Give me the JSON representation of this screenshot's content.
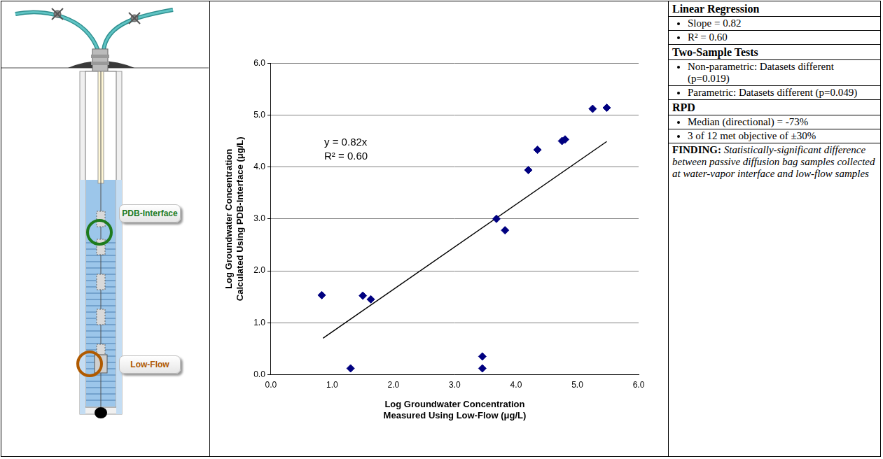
{
  "chart_data": {
    "type": "scatter",
    "x_label": "Log Groundwater Concentration Measured Using Low-Flow (μg/L)",
    "y_label": [
      "Log Groundwater Concentration",
      "Calculated Using PDB-Interface (μg/L)"
    ],
    "x": [
      0.83,
      1.3,
      1.5,
      1.63,
      3.45,
      3.45,
      3.68,
      3.82,
      4.2,
      4.35,
      4.75,
      4.8,
      5.25,
      5.48
    ],
    "values": [
      1.53,
      0.12,
      1.52,
      1.45,
      0.35,
      0.12,
      3.0,
      2.78,
      3.94,
      4.33,
      4.5,
      4.53,
      5.12,
      5.14
    ],
    "color": "#000080",
    "marker": "diamond",
    "trend_line": {
      "x": [
        0.85,
        5.48
      ],
      "y": [
        0.7,
        4.49
      ],
      "color": "#000000"
    },
    "annotations": [
      "y = 0.82x",
      "R² = 0.60"
    ],
    "xlim": [
      0,
      6
    ],
    "ylim": [
      0,
      6
    ],
    "xticks": [
      {
        "value": 0,
        "label": "0.0"
      },
      {
        "value": 1,
        "label": "1.0"
      },
      {
        "value": 2,
        "label": "2.0"
      },
      {
        "value": 3,
        "label": "3.0"
      },
      {
        "value": 4,
        "label": "4.0"
      },
      {
        "value": 5,
        "label": "5.0"
      },
      {
        "value": 6,
        "label": "6.0"
      }
    ],
    "yticks": [
      {
        "value": 0,
        "label": "0.0"
      },
      {
        "value": 1,
        "label": "1.0"
      },
      {
        "value": 2,
        "label": "2.0"
      },
      {
        "value": 3,
        "label": "3.0"
      },
      {
        "value": 4,
        "label": "4.0"
      },
      {
        "value": 5,
        "label": "5.0"
      },
      {
        "value": 6,
        "label": "6.0"
      }
    ],
    "grid": true
  },
  "diagram": {
    "labels": [
      {
        "text": "PDB-Interface",
        "color": "#1e7b1e"
      },
      {
        "text": "Low-Flow",
        "color": "#b05a00"
      }
    ]
  },
  "table": {
    "sections": [
      {
        "head": "Linear Regression",
        "items": [
          "Slope = 0.82",
          "R² = 0.60"
        ]
      },
      {
        "head": "Two-Sample Tests",
        "items": [
          "Non-parametric: Datasets different (p=0.019)",
          "Parametric: Datasets different (p=0.049)"
        ]
      },
      {
        "head": "RPD",
        "items": [
          "Median (directional) = -73%",
          "3 of 12 met objective of ±30%"
        ]
      }
    ],
    "finding": {
      "label": "FINDING:",
      "text": "Statistically-significant difference between passive diffusion bag samples collected at water-vapor interface and low-flow samples"
    }
  }
}
